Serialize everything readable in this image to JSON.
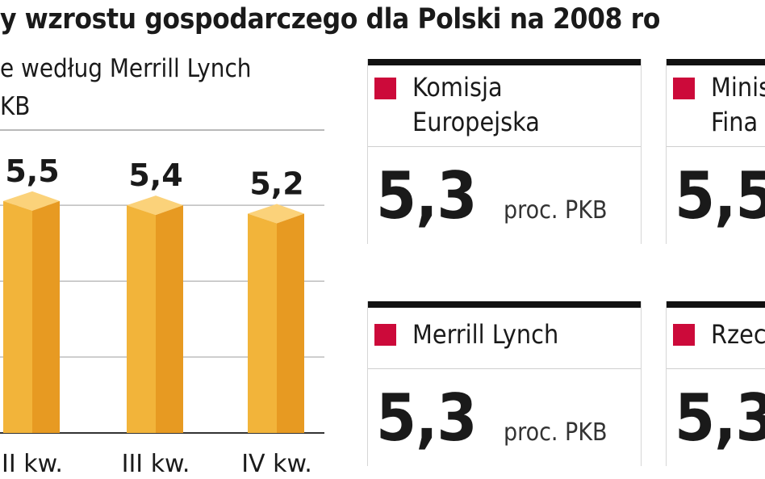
{
  "header": {
    "title": "y wzrostu gospodarczego dla Polski na 2008 ro",
    "subtitle1": "e według Merrill Lynch",
    "subtitle2": "KB"
  },
  "chart_data": {
    "type": "bar",
    "categories": [
      "II kw.",
      "III kw.",
      "IV kw."
    ],
    "values": [
      5.5,
      5.4,
      5.2
    ],
    "value_labels": [
      "5,5",
      "5,4",
      "5,2"
    ],
    "title": "",
    "xlabel": "",
    "ylabel": "",
    "grid": true,
    "colors": {
      "bar_front": "#f2b43a",
      "bar_side": "#e79a22",
      "bar_top": "#fbd27a",
      "grid": "#bdbdbd",
      "baseline": "#333333"
    }
  },
  "forecasts": [
    {
      "name": "Komisja\nEuropejska",
      "value": "5,3",
      "unit": "proc. PKB"
    },
    {
      "name": "Minis\nFina",
      "value": "5,5",
      "unit": ""
    },
    {
      "name": "Merrill Lynch",
      "value": "5,3",
      "unit": "proc. PKB"
    },
    {
      "name": "Rzec",
      "value": "5,3",
      "unit": ""
    }
  ],
  "colors": {
    "accent": "#cc0a3a",
    "card_bar": "#111111"
  }
}
